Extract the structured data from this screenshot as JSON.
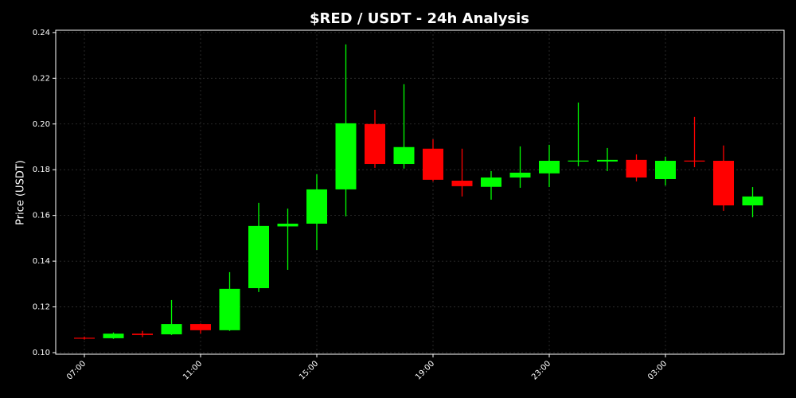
{
  "chart_data": {
    "type": "candlestick",
    "title": "$RED / USDT - 24h Analysis",
    "y_label": "Price (USDT)",
    "categories": [
      "07:00",
      null,
      null,
      null,
      "11:00",
      null,
      null,
      null,
      "15:00",
      null,
      null,
      null,
      "19:00",
      null,
      null,
      null,
      "23:00",
      null,
      null,
      null,
      "03:00",
      null,
      null,
      null
    ],
    "open": [
      0.1065,
      0.1063,
      0.1083,
      0.108,
      0.1125,
      0.1098,
      0.1282,
      0.1552,
      0.1564,
      0.1714,
      0.2,
      0.1825,
      0.1892,
      0.1752,
      0.1725,
      0.1766,
      0.1784,
      0.1838,
      0.1836,
      0.1843,
      0.1759,
      0.184,
      0.1839,
      0.1644
    ],
    "high": [
      0.107,
      0.1088,
      0.1095,
      0.123,
      0.1127,
      0.1352,
      0.1655,
      0.163,
      0.178,
      0.2348,
      0.2062,
      0.2174,
      0.1933,
      0.1892,
      0.1794,
      0.1902,
      0.1909,
      0.2094,
      0.1895,
      0.1867,
      0.1857,
      0.2031,
      0.1906,
      0.1724
    ],
    "low": [
      0.1057,
      0.106,
      0.1068,
      0.1077,
      0.1083,
      0.1095,
      0.1265,
      0.1362,
      0.1449,
      0.1596,
      0.1808,
      0.1805,
      0.1749,
      0.1683,
      0.1669,
      0.1721,
      0.1724,
      0.1815,
      0.1794,
      0.1749,
      0.1731,
      0.1811,
      0.162,
      0.1592
    ],
    "close": [
      0.1062,
      0.1083,
      0.1077,
      0.1125,
      0.1098,
      0.1279,
      0.1554,
      0.1564,
      0.1714,
      0.2003,
      0.1825,
      0.1899,
      0.1756,
      0.1728,
      0.1766,
      0.1787,
      0.1839,
      0.184,
      0.1843,
      0.1766,
      0.1839,
      0.1838,
      0.1644,
      0.1683
    ],
    "up_color": "#00ff00",
    "down_color": "#ff0000",
    "ylim": [
      0.0993,
      0.241
    ],
    "yticks": [
      {
        "value": 0.1,
        "label": "0.10"
      },
      0.12,
      0.14,
      0.16,
      0.18,
      {
        "value": 0.2,
        "label": "0.20"
      },
      0.22,
      0.24
    ],
    "grid": true
  }
}
